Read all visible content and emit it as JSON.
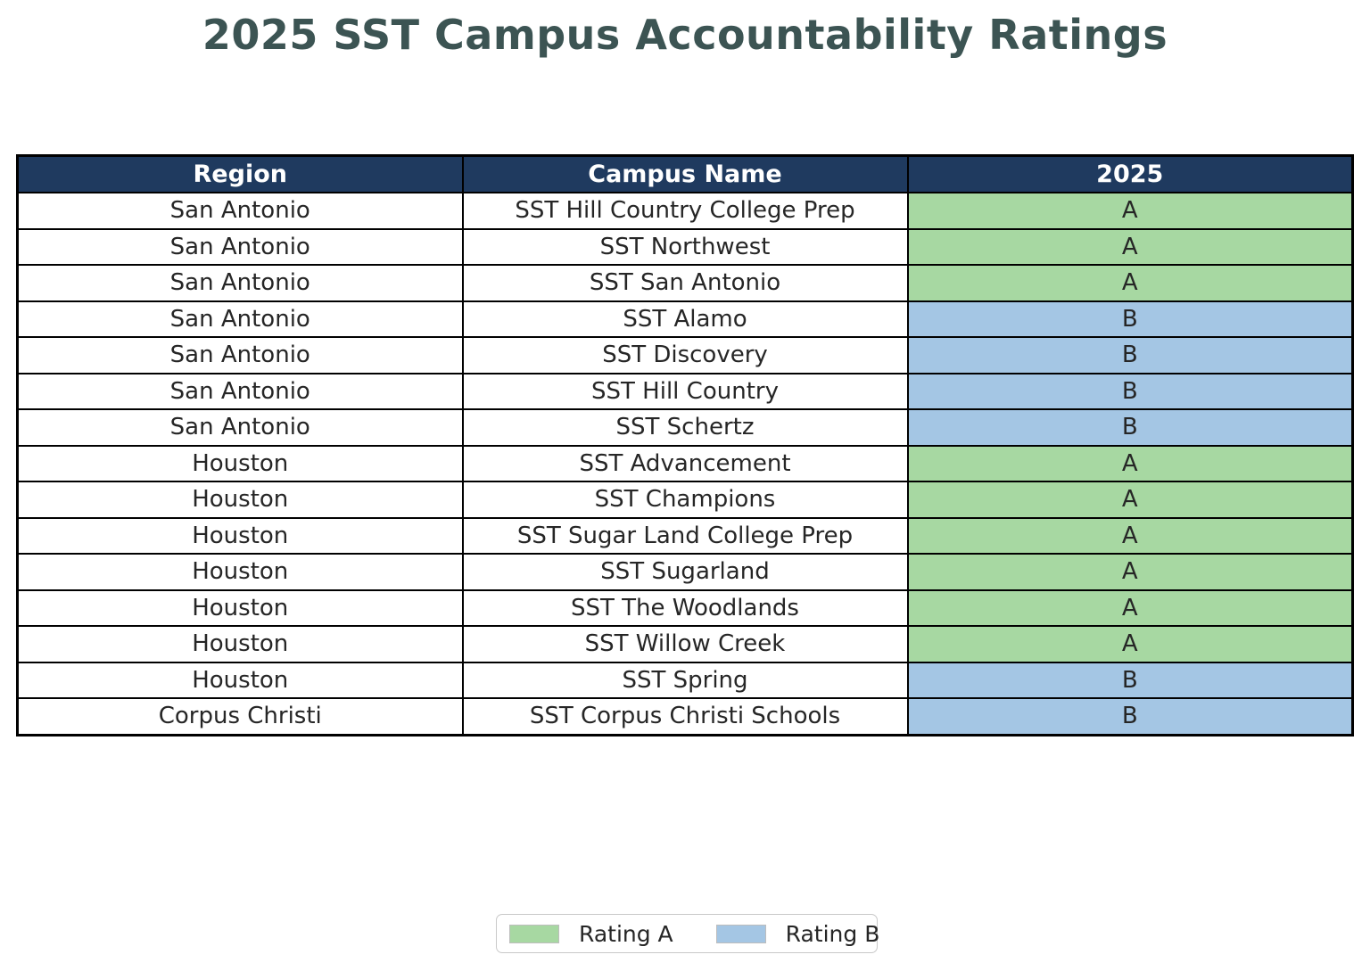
{
  "title": "2025 SST Campus Accountability Ratings",
  "chart_data": {
    "type": "table",
    "title": "2025 SST Campus Accountability Ratings",
    "columns": [
      "Region",
      "Campus Name",
      "2025"
    ],
    "rows": [
      [
        "San Antonio",
        "SST Hill Country College Prep",
        "A"
      ],
      [
        "San Antonio",
        "SST Northwest",
        "A"
      ],
      [
        "San Antonio",
        "SST San Antonio",
        "A"
      ],
      [
        "San Antonio",
        "SST Alamo",
        "B"
      ],
      [
        "San Antonio",
        "SST Discovery",
        "B"
      ],
      [
        "San Antonio",
        "SST Hill Country",
        "B"
      ],
      [
        "San Antonio",
        "SST Schertz",
        "B"
      ],
      [
        "Houston",
        "SST Advancement",
        "A"
      ],
      [
        "Houston",
        "SST Champions",
        "A"
      ],
      [
        "Houston",
        "SST Sugar Land College Prep",
        "A"
      ],
      [
        "Houston",
        "SST Sugarland",
        "A"
      ],
      [
        "Houston",
        "SST The Woodlands",
        "A"
      ],
      [
        "Houston",
        "SST Willow Creek",
        "A"
      ],
      [
        "Houston",
        "SST Spring",
        "B"
      ],
      [
        "Corpus Christi",
        "SST Corpus Christi Schools",
        "B"
      ]
    ],
    "legend": [
      {
        "label": "Rating A",
        "color": "#A7D8A2"
      },
      {
        "label": "Rating B",
        "color": "#A4C6E4"
      }
    ],
    "legend_position": "bottom-center",
    "grid": true
  },
  "styles": {
    "rating_colors": {
      "A": "#A7D8A2",
      "B": "#A4C6E4"
    },
    "header_bg": "#1F3A5F",
    "header_text": "#FFFFFF",
    "title_color": "#3C5453",
    "border_color": "#000000"
  }
}
